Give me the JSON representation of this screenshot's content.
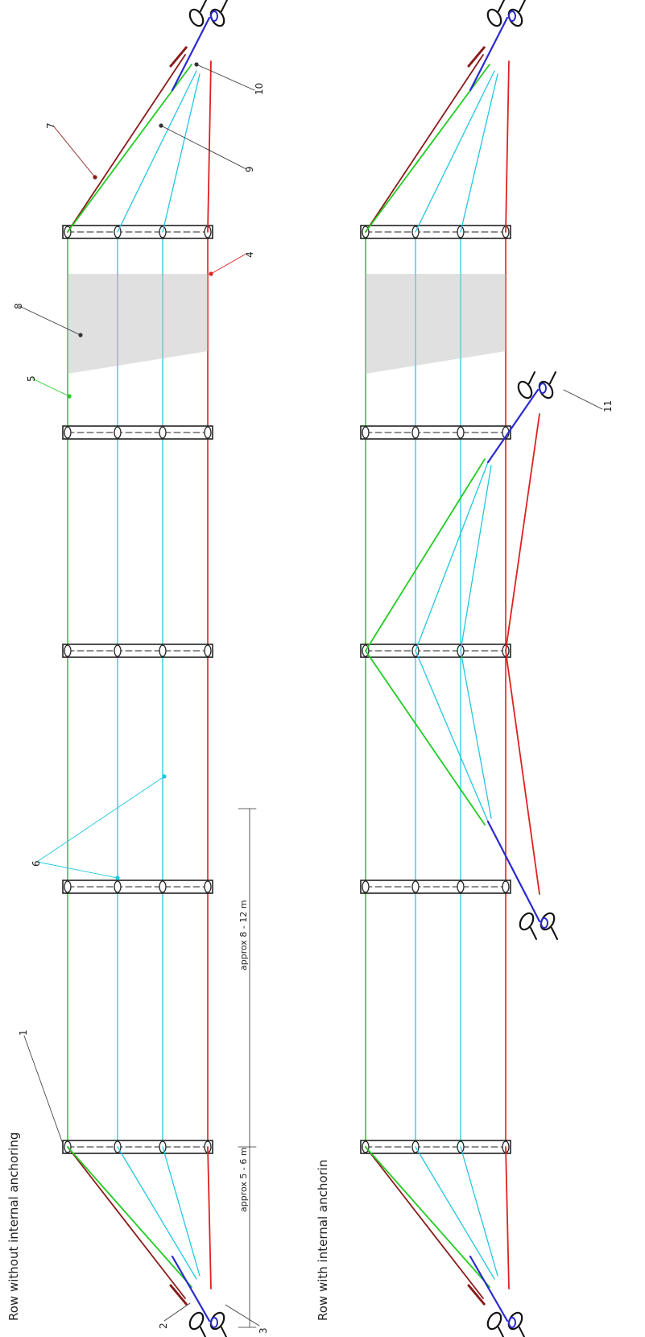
{
  "titles": {
    "top": "Row without internal anchoring",
    "bottom": "Row with internal anchorin"
  },
  "dimensions": {
    "end_spacing": "approx 5 - 6 m",
    "post_spacing": "approx 8 - 12 m"
  },
  "callouts": {
    "n1": "1",
    "n2": "2",
    "n3": "3",
    "n4": "4",
    "n5": "5",
    "n6": "6",
    "n7": "7",
    "n8": "8",
    "n9": "9",
    "n10": "10",
    "n11": "11"
  },
  "colors": {
    "post": "#222222",
    "wire_green": "#22cc22",
    "wire_cyan": "#22c8e0",
    "wire_red": "#e02020",
    "wire_darkred": "#8b1a1a",
    "anchor_blue": "#2a2ad0",
    "net": "#bbbbbb"
  }
}
